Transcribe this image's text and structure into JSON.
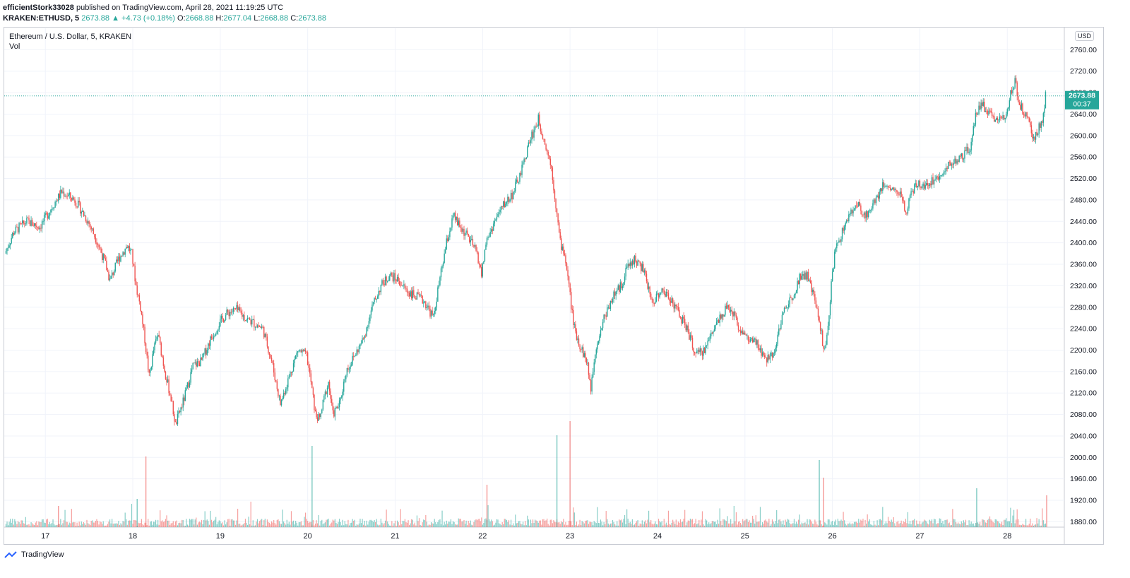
{
  "header": {
    "author": "efficientStork33028",
    "published_text": "published on TradingView.com, April 28, 2021 11:19:25 UTC",
    "symbol": "KRAKEN:ETHUSD, 5",
    "last": "2673.88",
    "arrow": "▲",
    "change": "+4.73 (+0.18%)",
    "o_label": "O:",
    "o_value": "2668.88",
    "h_label": "H:",
    "h_value": "2677.04",
    "l_label": "L:",
    "l_value": "2668.88",
    "c_label": "C:",
    "c_value": "2673.88"
  },
  "legend": {
    "title": "Ethereum / U.S. Dollar, 5, KRAKEN",
    "volume": "Vol"
  },
  "currency_button": "USD",
  "price_label": {
    "price": "2673.88",
    "countdown": "00:37"
  },
  "footer": {
    "brand": "TradingView"
  },
  "colors": {
    "up": "#26a69a",
    "down": "#ef5350",
    "grid": "#f0f3fa",
    "axis_text": "#131722"
  },
  "chart_data": {
    "type": "candlestick",
    "title": "Ethereum / U.S. Dollar, 5, KRAKEN",
    "x_ticks": [
      "17",
      "18",
      "19",
      "20",
      "21",
      "22",
      "23",
      "24",
      "25",
      "26",
      "27",
      "28"
    ],
    "y_ticks": [
      "2760.00",
      "2720.00",
      "2680.00",
      "2640.00",
      "2600.00",
      "2560.00",
      "2520.00",
      "2480.00",
      "2440.00",
      "2400.00",
      "2360.00",
      "2320.00",
      "2280.00",
      "2240.00",
      "2200.00",
      "2160.00",
      "2120.00",
      "2080.00",
      "2040.00",
      "2000.00",
      "1960.00",
      "1920.00",
      "1880.00"
    ],
    "ylim": [
      1870,
      2800
    ],
    "x_range_days": [
      16.53,
      28.45
    ],
    "last_price": 2673.88,
    "series": [
      {
        "name": "ETHUSD",
        "points": [
          [
            16.55,
            2380
          ],
          [
            16.65,
            2420
          ],
          [
            16.8,
            2440
          ],
          [
            16.95,
            2430
          ],
          [
            17.1,
            2470
          ],
          [
            17.2,
            2495
          ],
          [
            17.35,
            2480
          ],
          [
            17.5,
            2440
          ],
          [
            17.6,
            2405
          ],
          [
            17.7,
            2360
          ],
          [
            17.75,
            2330
          ],
          [
            17.85,
            2370
          ],
          [
            17.95,
            2395
          ],
          [
            18.0,
            2380
          ],
          [
            18.05,
            2320
          ],
          [
            18.1,
            2280
          ],
          [
            18.15,
            2220
          ],
          [
            18.2,
            2150
          ],
          [
            18.25,
            2200
          ],
          [
            18.3,
            2230
          ],
          [
            18.38,
            2160
          ],
          [
            18.45,
            2110
          ],
          [
            18.5,
            2060
          ],
          [
            18.6,
            2110
          ],
          [
            18.7,
            2170
          ],
          [
            18.8,
            2180
          ],
          [
            18.9,
            2220
          ],
          [
            19.0,
            2250
          ],
          [
            19.1,
            2270
          ],
          [
            19.2,
            2275
          ],
          [
            19.3,
            2260
          ],
          [
            19.4,
            2250
          ],
          [
            19.5,
            2240
          ],
          [
            19.55,
            2210
          ],
          [
            19.6,
            2180
          ],
          [
            19.65,
            2140
          ],
          [
            19.7,
            2100
          ],
          [
            19.8,
            2150
          ],
          [
            19.9,
            2200
          ],
          [
            20.0,
            2190
          ],
          [
            20.05,
            2140
          ],
          [
            20.1,
            2080
          ],
          [
            20.15,
            2070
          ],
          [
            20.2,
            2110
          ],
          [
            20.25,
            2140
          ],
          [
            20.3,
            2080
          ],
          [
            20.38,
            2100
          ],
          [
            20.45,
            2160
          ],
          [
            20.55,
            2190
          ],
          [
            20.65,
            2220
          ],
          [
            20.75,
            2280
          ],
          [
            20.85,
            2320
          ],
          [
            20.95,
            2340
          ],
          [
            21.05,
            2330
          ],
          [
            21.15,
            2310
          ],
          [
            21.25,
            2300
          ],
          [
            21.35,
            2290
          ],
          [
            21.45,
            2260
          ],
          [
            21.5,
            2310
          ],
          [
            21.6,
            2400
          ],
          [
            21.68,
            2450
          ],
          [
            21.75,
            2430
          ],
          [
            21.85,
            2410
          ],
          [
            21.95,
            2380
          ],
          [
            22.0,
            2340
          ],
          [
            22.05,
            2400
          ],
          [
            22.15,
            2440
          ],
          [
            22.25,
            2470
          ],
          [
            22.35,
            2490
          ],
          [
            22.45,
            2530
          ],
          [
            22.55,
            2590
          ],
          [
            22.65,
            2630
          ],
          [
            22.72,
            2590
          ],
          [
            22.8,
            2540
          ],
          [
            22.85,
            2470
          ],
          [
            22.9,
            2400
          ],
          [
            22.95,
            2380
          ],
          [
            23.0,
            2320
          ],
          [
            23.05,
            2250
          ],
          [
            23.1,
            2220
          ],
          [
            23.15,
            2200
          ],
          [
            23.2,
            2180
          ],
          [
            23.25,
            2130
          ],
          [
            23.3,
            2200
          ],
          [
            23.4,
            2260
          ],
          [
            23.5,
            2300
          ],
          [
            23.6,
            2320
          ],
          [
            23.65,
            2350
          ],
          [
            23.75,
            2370
          ],
          [
            23.85,
            2350
          ],
          [
            23.95,
            2290
          ],
          [
            24.05,
            2310
          ],
          [
            24.15,
            2300
          ],
          [
            24.25,
            2270
          ],
          [
            24.35,
            2240
          ],
          [
            24.45,
            2190
          ],
          [
            24.55,
            2200
          ],
          [
            24.65,
            2240
          ],
          [
            24.75,
            2270
          ],
          [
            24.85,
            2280
          ],
          [
            24.95,
            2240
          ],
          [
            25.05,
            2220
          ],
          [
            25.15,
            2210
          ],
          [
            25.25,
            2180
          ],
          [
            25.35,
            2200
          ],
          [
            25.45,
            2270
          ],
          [
            25.55,
            2300
          ],
          [
            25.65,
            2340
          ],
          [
            25.72,
            2340
          ],
          [
            25.8,
            2300
          ],
          [
            25.88,
            2240
          ],
          [
            25.92,
            2190
          ],
          [
            25.97,
            2250
          ],
          [
            26.0,
            2330
          ],
          [
            26.05,
            2390
          ],
          [
            26.1,
            2410
          ],
          [
            26.2,
            2450
          ],
          [
            26.3,
            2470
          ],
          [
            26.4,
            2450
          ],
          [
            26.5,
            2480
          ],
          [
            26.6,
            2510
          ],
          [
            26.7,
            2500
          ],
          [
            26.8,
            2490
          ],
          [
            26.85,
            2450
          ],
          [
            26.9,
            2490
          ],
          [
            27.0,
            2510
          ],
          [
            27.1,
            2510
          ],
          [
            27.2,
            2520
          ],
          [
            27.3,
            2540
          ],
          [
            27.4,
            2550
          ],
          [
            27.5,
            2560
          ],
          [
            27.6,
            2580
          ],
          [
            27.65,
            2640
          ],
          [
            27.72,
            2660
          ],
          [
            27.8,
            2640
          ],
          [
            27.9,
            2630
          ],
          [
            28.0,
            2640
          ],
          [
            28.05,
            2680
          ],
          [
            28.1,
            2700
          ],
          [
            28.15,
            2660
          ],
          [
            28.22,
            2640
          ],
          [
            28.28,
            2610
          ],
          [
            28.32,
            2590
          ],
          [
            28.38,
            2620
          ],
          [
            28.42,
            2630
          ],
          [
            28.45,
            2673.88
          ]
        ]
      }
    ],
    "volume_spikes": [
      [
        17.15,
        30
      ],
      [
        18.05,
        40
      ],
      [
        18.15,
        100
      ],
      [
        20.05,
        115
      ],
      [
        22.05,
        60
      ],
      [
        22.85,
        130
      ],
      [
        23.0,
        150
      ],
      [
        25.85,
        95
      ],
      [
        25.9,
        70
      ],
      [
        27.65,
        55
      ],
      [
        28.45,
        45
      ]
    ]
  }
}
